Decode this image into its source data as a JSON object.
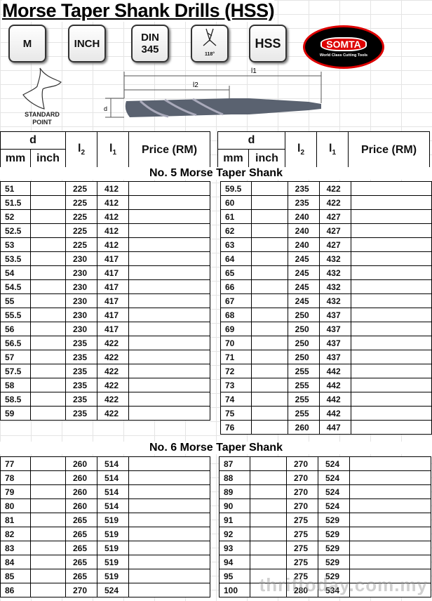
{
  "title": "Morse Taper Shank Drills (HSS)",
  "badges": {
    "m": "M",
    "inch": "INCH",
    "din_line1": "DIN",
    "din_line2": "345",
    "angle": "118°",
    "hss": "HSS"
  },
  "logo": {
    "brand": "SOMTA",
    "tagline": "World Class Cutting Tools"
  },
  "diagram": {
    "standard_point_line1": "STANDARD",
    "standard_point_line2": "POINT",
    "l1": "l1",
    "l2": "l2",
    "d": "d"
  },
  "headers": {
    "d": "d",
    "mm": "mm",
    "inch": "inch",
    "l2": "l",
    "l2_sub": "2",
    "l1": "l",
    "l1_sub": "1",
    "price": "Price (RM)"
  },
  "sections": [
    {
      "title": "No. 5 Morse Taper Shank",
      "left": [
        [
          "51",
          "",
          "225",
          "412",
          ""
        ],
        [
          "51.5",
          "",
          "225",
          "412",
          ""
        ],
        [
          "52",
          "",
          "225",
          "412",
          ""
        ],
        [
          "52.5",
          "",
          "225",
          "412",
          ""
        ],
        [
          "53",
          "",
          "225",
          "412",
          ""
        ],
        [
          "53.5",
          "",
          "230",
          "417",
          ""
        ],
        [
          "54",
          "",
          "230",
          "417",
          ""
        ],
        [
          "54.5",
          "",
          "230",
          "417",
          ""
        ],
        [
          "55",
          "",
          "230",
          "417",
          ""
        ],
        [
          "55.5",
          "",
          "230",
          "417",
          ""
        ],
        [
          "56",
          "",
          "230",
          "417",
          ""
        ],
        [
          "56.5",
          "",
          "235",
          "422",
          ""
        ],
        [
          "57",
          "",
          "235",
          "422",
          ""
        ],
        [
          "57.5",
          "",
          "235",
          "422",
          ""
        ],
        [
          "58",
          "",
          "235",
          "422",
          ""
        ],
        [
          "58.5",
          "",
          "235",
          "422",
          ""
        ],
        [
          "59",
          "",
          "235",
          "422",
          ""
        ]
      ],
      "right": [
        [
          "59.5",
          "",
          "235",
          "422",
          ""
        ],
        [
          "60",
          "",
          "235",
          "422",
          ""
        ],
        [
          "61",
          "",
          "240",
          "427",
          ""
        ],
        [
          "62",
          "",
          "240",
          "427",
          ""
        ],
        [
          "63",
          "",
          "240",
          "427",
          ""
        ],
        [
          "64",
          "",
          "245",
          "432",
          ""
        ],
        [
          "65",
          "",
          "245",
          "432",
          ""
        ],
        [
          "66",
          "",
          "245",
          "432",
          ""
        ],
        [
          "67",
          "",
          "245",
          "432",
          ""
        ],
        [
          "68",
          "",
          "250",
          "437",
          ""
        ],
        [
          "69",
          "",
          "250",
          "437",
          ""
        ],
        [
          "70",
          "",
          "250",
          "437",
          ""
        ],
        [
          "71",
          "",
          "250",
          "437",
          ""
        ],
        [
          "72",
          "",
          "255",
          "442",
          ""
        ],
        [
          "73",
          "",
          "255",
          "442",
          ""
        ],
        [
          "74",
          "",
          "255",
          "442",
          ""
        ],
        [
          "75",
          "",
          "255",
          "442",
          ""
        ],
        [
          "76",
          "",
          "260",
          "447",
          ""
        ]
      ]
    },
    {
      "title": "No. 6 Morse Taper Shank",
      "left": [
        [
          "77",
          "",
          "260",
          "514",
          ""
        ],
        [
          "78",
          "",
          "260",
          "514",
          ""
        ],
        [
          "79",
          "",
          "260",
          "514",
          ""
        ],
        [
          "80",
          "",
          "260",
          "514",
          ""
        ],
        [
          "81",
          "",
          "265",
          "519",
          ""
        ],
        [
          "82",
          "",
          "265",
          "519",
          ""
        ],
        [
          "83",
          "",
          "265",
          "519",
          ""
        ],
        [
          "84",
          "",
          "265",
          "519",
          ""
        ],
        [
          "85",
          "",
          "265",
          "519",
          ""
        ],
        [
          "86",
          "",
          "270",
          "524",
          ""
        ]
      ],
      "right": [
        [
          "87",
          "",
          "270",
          "524",
          ""
        ],
        [
          "88",
          "",
          "270",
          "524",
          ""
        ],
        [
          "89",
          "",
          "270",
          "524",
          ""
        ],
        [
          "90",
          "",
          "270",
          "524",
          ""
        ],
        [
          "91",
          "",
          "275",
          "529",
          ""
        ],
        [
          "92",
          "",
          "275",
          "529",
          ""
        ],
        [
          "93",
          "",
          "275",
          "529",
          ""
        ],
        [
          "94",
          "",
          "275",
          "529",
          ""
        ],
        [
          "95",
          "",
          "275",
          "529",
          ""
        ],
        [
          "100",
          "",
          "280",
          "534",
          ""
        ]
      ]
    }
  ],
  "watermark": "thriftoday.com.my"
}
